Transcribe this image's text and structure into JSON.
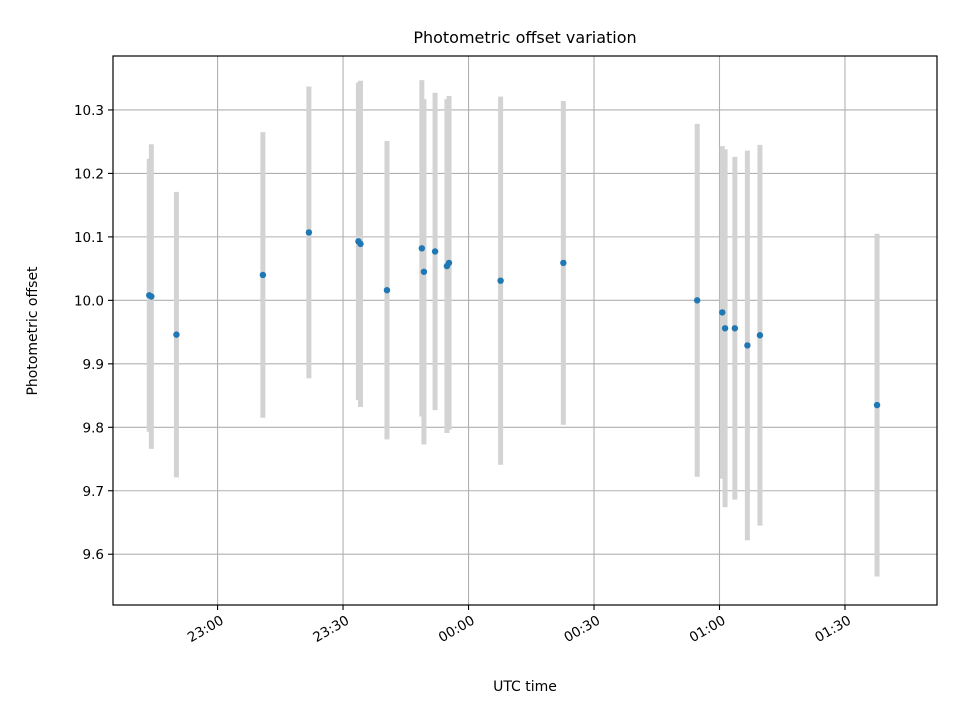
{
  "chart_data": {
    "type": "scatter",
    "title": "Photometric offset variation",
    "xlabel": "UTC time",
    "ylabel": "Photometric offset",
    "x_format": "HH:MM",
    "xlim": [
      "22:35",
      "01:52"
    ],
    "ylim": [
      9.52,
      10.385
    ],
    "x_ticks": [
      "23:00",
      "23:30",
      "00:00",
      "00:30",
      "01:00",
      "01:30"
    ],
    "y_ticks": [
      9.6,
      9.7,
      9.8,
      9.9,
      10.0,
      10.1,
      10.2,
      10.3
    ],
    "grid": true,
    "colors": {
      "points": "#1f77b4",
      "error_bars": "#d3d3d3",
      "grid": "#b0b0b0"
    },
    "points": [
      {
        "time": "22:43:40",
        "y": 10.008,
        "yerr": 0.215
      },
      {
        "time": "22:44:10",
        "y": 10.006,
        "yerr": 0.24
      },
      {
        "time": "22:50:10",
        "y": 9.946,
        "yerr": 0.225
      },
      {
        "time": "23:10:50",
        "y": 10.04,
        "yerr": 0.225
      },
      {
        "time": "23:21:50",
        "y": 10.107,
        "yerr": 0.23
      },
      {
        "time": "23:33:40",
        "y": 10.093,
        "yerr": 0.25
      },
      {
        "time": "23:34:10",
        "y": 10.089,
        "yerr": 0.257
      },
      {
        "time": "23:40:30",
        "y": 10.016,
        "yerr": 0.235
      },
      {
        "time": "23:48:50",
        "y": 10.082,
        "yerr": 0.265
      },
      {
        "time": "23:49:20",
        "y": 10.045,
        "yerr": 0.272
      },
      {
        "time": "23:52:00",
        "y": 10.077,
        "yerr": 0.25
      },
      {
        "time": "23:54:50",
        "y": 10.054,
        "yerr": 0.263
      },
      {
        "time": "23:55:20",
        "y": 10.059,
        "yerr": 0.263
      },
      {
        "time": "00:07:40",
        "y": 10.031,
        "yerr": 0.29
      },
      {
        "time": "00:22:40",
        "y": 10.059,
        "yerr": 0.255
      },
      {
        "time": "00:54:40",
        "y": 10.0,
        "yerr": 0.278
      },
      {
        "time": "01:00:40",
        "y": 9.981,
        "yerr": 0.262
      },
      {
        "time": "01:01:20",
        "y": 9.956,
        "yerr": 0.282
      },
      {
        "time": "01:03:40",
        "y": 9.956,
        "yerr": 0.27
      },
      {
        "time": "01:06:40",
        "y": 9.929,
        "yerr": 0.307
      },
      {
        "time": "01:09:40",
        "y": 9.945,
        "yerr": 0.3
      },
      {
        "time": "01:37:40",
        "y": 9.835,
        "yerr": 0.27
      }
    ]
  }
}
